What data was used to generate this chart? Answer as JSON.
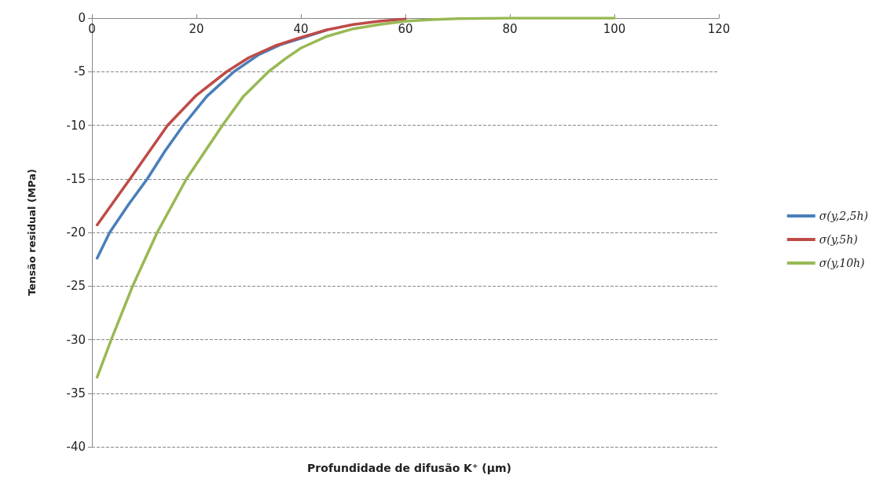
{
  "chart_data": {
    "type": "line",
    "xlabel": "Profundidade de difusão K⁺ (µm)",
    "ylabel": "Tensão residual (MPa)",
    "xlim": [
      0,
      120
    ],
    "xticks": [
      0,
      20,
      40,
      60,
      80,
      100,
      120
    ],
    "ylim": [
      -40,
      0
    ],
    "yticks": [
      -40,
      -35,
      -30,
      -25,
      -20,
      -15,
      -10,
      -5,
      0
    ],
    "grid": "y",
    "legend": "right",
    "marker": "none",
    "line_style": "solid",
    "series": [
      {
        "name": "σ(y,2,5h)",
        "color": "#4a7ebb",
        "x": [
          1,
          3.4,
          7,
          10.6,
          14,
          17.5,
          22,
          27.2,
          32,
          36,
          40,
          45
        ],
        "values": [
          -22.4,
          -20,
          -17.4,
          -15,
          -12.4,
          -10,
          -7.3,
          -5,
          -3.4,
          -2.5,
          -1.9,
          -1.1
        ]
      },
      {
        "name": "σ(y,5h)",
        "color": "#be4b48",
        "x": [
          1,
          7.3,
          14.5,
          20,
          25.8,
          30,
          35,
          40,
          45,
          50,
          55,
          60
        ],
        "values": [
          -19.3,
          -15,
          -10,
          -7.2,
          -5,
          -3.7,
          -2.6,
          -1.8,
          -1.1,
          -0.6,
          -0.3,
          -0.1
        ]
      },
      {
        "name": "σ(y,10h)",
        "color": "#98b954",
        "x": [
          1,
          3.7,
          7.8,
          12.5,
          18.1,
          25,
          29,
          33.8,
          37,
          40,
          45,
          50,
          55,
          60,
          65,
          70,
          80,
          100
        ],
        "values": [
          -33.5,
          -30,
          -25,
          -20,
          -15,
          -10,
          -7.3,
          -5,
          -3.8,
          -2.8,
          -1.7,
          -1,
          -0.6,
          -0.3,
          -0.15,
          -0.05,
          0,
          0
        ]
      }
    ]
  }
}
